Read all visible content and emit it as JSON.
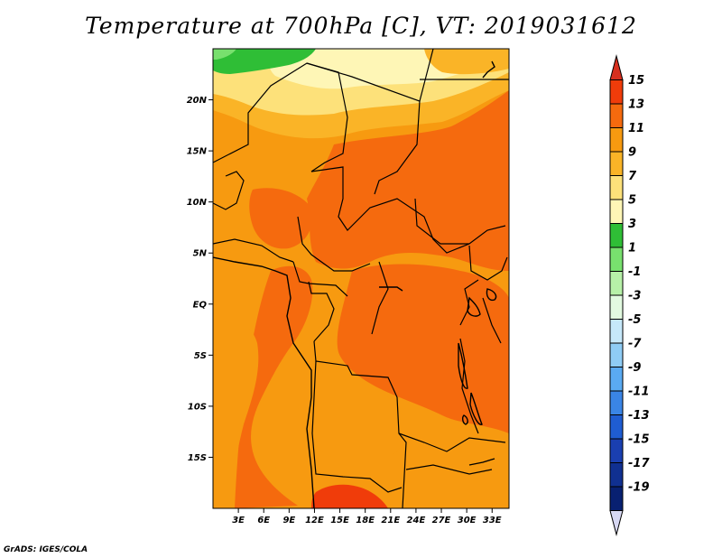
{
  "title": "Temperature at 700hPa [C], VT: 2019031612",
  "credit": "GrADS: IGES/COLA",
  "map": {
    "projection": "latlon",
    "lon_range": [
      0,
      35
    ],
    "lat_range": [
      -20,
      25
    ],
    "lat_ticks": [
      {
        "value": 20,
        "label": "20N"
      },
      {
        "value": 15,
        "label": "15N"
      },
      {
        "value": 10,
        "label": "10N"
      },
      {
        "value": 5,
        "label": "5N"
      },
      {
        "value": 0,
        "label": "EQ"
      },
      {
        "value": -5,
        "label": "5S"
      },
      {
        "value": -10,
        "label": "10S"
      },
      {
        "value": -15,
        "label": "15S"
      }
    ],
    "lon_ticks": [
      {
        "value": 3,
        "label": "3E"
      },
      {
        "value": 6,
        "label": "6E"
      },
      {
        "value": 9,
        "label": "9E"
      },
      {
        "value": 12,
        "label": "12E"
      },
      {
        "value": 15,
        "label": "15E"
      },
      {
        "value": 18,
        "label": "18E"
      },
      {
        "value": 21,
        "label": "21E"
      },
      {
        "value": 24,
        "label": "24E"
      },
      {
        "value": 27,
        "label": "27E"
      },
      {
        "value": 30,
        "label": "30E"
      },
      {
        "value": 33,
        "label": "33E"
      }
    ]
  },
  "colorbar": {
    "labels": [
      "15",
      "13",
      "11",
      "9",
      "7",
      "5",
      "3",
      "1",
      "-1",
      "-3",
      "-5",
      "-7",
      "-9",
      "-11",
      "-13",
      "-15",
      "-17",
      "-19"
    ],
    "colors": [
      "#d7301f",
      "#f03c0a",
      "#f56a0e",
      "#f79a10",
      "#fab427",
      "#fde17a",
      "#fef6b6",
      "#2fbe36",
      "#78e06e",
      "#b7f1a8",
      "#e2fae0",
      "#c6e8fa",
      "#8fccf5",
      "#5aaaf2",
      "#3a85e6",
      "#1f5dd2",
      "#1a3fb0",
      "#103091",
      "#082071",
      "#d7d8f3"
    ]
  }
}
